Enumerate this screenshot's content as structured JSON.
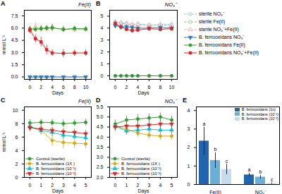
{
  "chart_data": [
    {
      "type": "line",
      "title": "Fe(II)",
      "annotations": [
        "A"
      ],
      "xlabel": "Days",
      "ylabel": "mmol L⁻¹",
      "xlim": [
        -1,
        11
      ],
      "xticks": [
        0,
        2,
        4,
        6,
        8,
        10
      ],
      "ylim": [
        -0.3,
        8.2
      ],
      "yticks": [
        {
          "value": 0,
          "label": "0.0"
        },
        1.5,
        {
          "value": 3,
          "label": "3.0"
        },
        4.5,
        {
          "value": 6,
          "label": "6.0"
        },
        7.5
      ],
      "series": [
        {
          "name": "sterile NO₃⁻",
          "color": "#7ec8e3",
          "marker": "circle-open",
          "line_style": "dashed",
          "x": [
            0,
            1,
            2,
            3,
            4,
            6,
            8,
            10
          ],
          "values": [
            0,
            0,
            0,
            0,
            0,
            0,
            0,
            0
          ],
          "errors": [
            0,
            0,
            0,
            0,
            0,
            0,
            0,
            0
          ]
        },
        {
          "name": "sterile Fe(II)",
          "color": "#7dc97d",
          "marker": "circle-open",
          "line_style": "dashed",
          "x": [
            0,
            1,
            2,
            3,
            4,
            6,
            8,
            10
          ],
          "values": [
            5.9,
            6.1,
            5.9,
            6.05,
            6.05,
            5.85,
            5.95,
            5.9
          ],
          "errors": [
            0.3,
            0.4,
            0.35,
            0.3,
            0.4,
            0.35,
            0.3,
            0.3
          ]
        },
        {
          "name": "sterile NO₃⁻+Fe(II)",
          "color": "#f4a0a0",
          "marker": "triangle-up-open",
          "line_style": "dashed",
          "x": [
            0,
            1,
            2,
            3,
            4,
            6,
            8,
            10
          ],
          "values": [
            5.8,
            6.1,
            5.95,
            5.9,
            6.05,
            5.85,
            5.8,
            5.85
          ],
          "errors": [
            0.5,
            0.6,
            0.4,
            0.45,
            0.5,
            0.4,
            0.35,
            0.35
          ]
        },
        {
          "name": "B. ferrooxidans  NO₃⁻",
          "color": "#2b7bba",
          "marker": "triangle-down",
          "line_style": "solid",
          "x": [
            0,
            1,
            2,
            3,
            4,
            6,
            8,
            10
          ],
          "values": [
            0,
            0,
            0,
            0,
            0,
            0,
            0,
            0
          ],
          "errors": [
            0,
            0,
            0,
            0,
            0,
            0,
            0,
            0
          ]
        },
        {
          "name": "B. ferrooxidans  Fe(II)",
          "color": "#2ca02c",
          "marker": "circle",
          "line_style": "solid",
          "x": [
            0,
            1,
            2,
            3,
            4,
            6,
            8,
            10
          ],
          "values": [
            5.9,
            5.85,
            5.95,
            6.0,
            6.05,
            5.85,
            5.95,
            5.9
          ],
          "errors": [
            0.3,
            0.3,
            0.35,
            0.3,
            0.4,
            0.3,
            0.3,
            0.3
          ]
        },
        {
          "name": "B. ferrooxidans  NO₃⁻+Fe(II)",
          "color": "#d62728",
          "marker": "square",
          "line_style": "solid",
          "x": [
            0,
            1,
            2,
            3,
            4,
            6,
            8,
            10
          ],
          "values": [
            5.75,
            4.7,
            4.3,
            3.35,
            2.95,
            2.9,
            2.95,
            2.95
          ],
          "errors": [
            0.4,
            0.5,
            0.6,
            0.6,
            0.4,
            0.5,
            0.4,
            0.4
          ]
        }
      ]
    },
    {
      "type": "line",
      "title": "NO₃⁻",
      "annotations": [
        "B"
      ],
      "xlabel": "Days",
      "legend": "right",
      "xlim": [
        -1,
        11
      ],
      "xticks": [
        0,
        2,
        4,
        6,
        8,
        10
      ],
      "ylim": [
        -0.3,
        5.5
      ],
      "yticks": [
        0,
        1,
        2,
        3,
        4,
        5
      ],
      "series": [
        {
          "name": "sterile NO₃⁻",
          "color": "#7ec8e3",
          "marker": "circle-open",
          "line_style": "dashed",
          "x": [
            0,
            1,
            2,
            3,
            4,
            6,
            8,
            10
          ],
          "values": [
            4.5,
            4.45,
            4.4,
            4.3,
            4.35,
            4.25,
            4.3,
            4.3
          ],
          "errors": [
            0.2,
            0.2,
            0.2,
            0.15,
            0.2,
            0.2,
            0.2,
            0.2
          ]
        },
        {
          "name": "sterile Fe(II)",
          "color": "#7dc97d",
          "marker": "circle-open",
          "line_style": "dashed",
          "x": [
            0,
            1,
            2,
            3,
            4,
            6,
            8,
            10
          ],
          "values": [
            0,
            0,
            0,
            0,
            0,
            0,
            0,
            0
          ],
          "errors": [
            0,
            0,
            0,
            0,
            0,
            0,
            0,
            0
          ]
        },
        {
          "name": "sterile NO₃⁻+Fe(II)",
          "color": "#f4a0a0",
          "marker": "triangle-up-open",
          "line_style": "dashed",
          "x": [
            0,
            1,
            2,
            3,
            4,
            6,
            8,
            10
          ],
          "values": [
            4.5,
            4.4,
            4.35,
            4.3,
            4.3,
            4.2,
            4.25,
            4.2
          ],
          "errors": [
            0.2,
            0.2,
            0.2,
            0.15,
            0.2,
            0.2,
            0.2,
            0.2
          ]
        },
        {
          "name": "B. ferrooxidans  NO₃⁻",
          "color": "#2b7bba",
          "marker": "triangle-down",
          "line_style": "solid",
          "x": [
            0,
            1,
            2,
            3,
            4,
            6,
            8,
            10
          ],
          "values": [
            4.2,
            4.1,
            4.1,
            4.05,
            4.0,
            4.0,
            4.05,
            4.0
          ],
          "errors": [
            0.2,
            0.2,
            0.2,
            0.2,
            0.2,
            0.2,
            0.2,
            0.2
          ]
        },
        {
          "name": "B. ferrooxidans  Fe(II)",
          "color": "#2ca02c",
          "marker": "circle",
          "line_style": "solid",
          "x": [
            0,
            1,
            2,
            3,
            4,
            6,
            8,
            10
          ],
          "values": [
            0,
            0,
            0,
            0,
            0,
            0,
            0,
            0
          ],
          "errors": [
            0,
            0,
            0,
            0,
            0,
            0,
            0,
            0
          ]
        },
        {
          "name": "B. ferrooxidans  NO₃⁻+Fe(II)",
          "color": "#d62728",
          "marker": "square",
          "line_style": "solid",
          "x": [
            0,
            1,
            2,
            3,
            4,
            6,
            8,
            10
          ],
          "values": [
            4.4,
            4.1,
            3.9,
            3.8,
            3.85,
            3.95,
            3.9,
            3.95
          ],
          "errors": [
            0.2,
            0.25,
            0.2,
            0.2,
            0.2,
            0.2,
            0.2,
            0.2
          ]
        }
      ]
    },
    {
      "type": "line",
      "title": "Fe(II)",
      "annotations": [
        "C"
      ],
      "xlabel": "Days",
      "ylabel": "mmol L⁻¹",
      "legend": "lower left",
      "xlim": [
        -0.5,
        5.5
      ],
      "xticks": [
        0,
        1,
        2,
        3,
        4,
        5
      ],
      "ylim": [
        0,
        10.5
      ],
      "yticks": [
        0,
        2,
        4,
        6,
        8,
        10
      ],
      "series": [
        {
          "name": "Control (sterile)",
          "color": "#2ca02c",
          "marker": "circle",
          "line_style": "solid",
          "x": [
            0,
            1,
            2,
            3,
            4,
            5
          ],
          "values": [
            8.1,
            8.2,
            8.15,
            8.0,
            8.1,
            8.2
          ],
          "errors": [
            0.5,
            0.45,
            0.5,
            0.55,
            0.5,
            0.5
          ]
        },
        {
          "name": "B. ferrooxidans (1X )",
          "color": "#d4ac0d",
          "marker": "circle",
          "line_style": "solid",
          "x": [
            0,
            1,
            2,
            3,
            4,
            5
          ],
          "values": [
            7.5,
            7.0,
            5.5,
            5.2,
            5.1,
            5.0
          ],
          "errors": [
            0.6,
            0.7,
            0.8,
            0.9,
            0.8,
            0.7
          ]
        },
        {
          "name": "B. ferrooxidans (10⁻¹)",
          "color": "#17becf",
          "marker": "triangle-up",
          "line_style": "solid",
          "x": [
            0,
            1,
            2,
            3,
            4,
            5
          ],
          "values": [
            7.6,
            7.0,
            6.7,
            6.3,
            6.1,
            5.9
          ],
          "errors": [
            0.5,
            0.6,
            0.6,
            0.6,
            0.5,
            0.5
          ]
        },
        {
          "name": "B. ferrooxidans (10⁻²)",
          "color": "#d62728",
          "marker": "triangle-down",
          "line_style": "solid",
          "x": [
            0,
            1,
            2,
            3,
            4,
            5
          ],
          "values": [
            7.4,
            7.2,
            7.0,
            6.8,
            6.7,
            6.5
          ],
          "errors": [
            0.5,
            0.5,
            0.5,
            0.5,
            0.5,
            0.5
          ]
        }
      ]
    },
    {
      "type": "line",
      "title": "NO₃⁻",
      "annotations": [
        "D"
      ],
      "xlabel": "Days",
      "legend": "lower left",
      "xlim": [
        -0.5,
        5.5
      ],
      "xticks": [
        0,
        1,
        2,
        3,
        4,
        5
      ],
      "ylim": [
        2,
        5.5
      ],
      "yticks": [
        {
          "value": 2,
          "label": "2.0"
        },
        2.5,
        {
          "value": 3,
          "label": "3.0"
        },
        3.5,
        {
          "value": 4,
          "label": "4.0"
        },
        4.5,
        {
          "value": 5,
          "label": "5.0"
        },
        5.5
      ],
      "series": [
        {
          "name": "Control (sterile)",
          "color": "#2ca02c",
          "marker": "circle",
          "line_style": "solid",
          "x": [
            0,
            1,
            2,
            3,
            4,
            5
          ],
          "values": [
            4.65,
            4.85,
            4.9,
            4.95,
            5.0,
            4.85
          ],
          "errors": [
            0.2,
            0.2,
            0.2,
            0.2,
            0.2,
            0.2
          ]
        },
        {
          "name": "B. ferrooxidans (1X )",
          "color": "#d4ac0d",
          "marker": "circle",
          "line_style": "solid",
          "x": [
            0,
            1,
            2,
            3,
            4,
            5
          ],
          "values": [
            4.55,
            4.4,
            4.2,
            4.1,
            4.05,
            4.05
          ],
          "errors": [
            0.2,
            0.2,
            0.2,
            0.2,
            0.2,
            0.2
          ]
        },
        {
          "name": "B. ferrooxidans (10⁻¹)",
          "color": "#17becf",
          "marker": "triangle-up",
          "line_style": "solid",
          "x": [
            0,
            1,
            2,
            3,
            4,
            5
          ],
          "values": [
            4.55,
            4.3,
            4.35,
            4.4,
            4.35,
            4.35
          ],
          "errors": [
            0.2,
            0.2,
            0.2,
            0.2,
            0.2,
            0.2
          ]
        },
        {
          "name": "B. ferrooxidans (10⁻²)",
          "color": "#d62728",
          "marker": "triangle-down",
          "line_style": "solid",
          "x": [
            0,
            1,
            2,
            3,
            4,
            5
          ],
          "values": [
            4.5,
            4.55,
            4.55,
            4.6,
            4.65,
            4.65
          ],
          "errors": [
            0.2,
            0.2,
            0.2,
            0.2,
            0.2,
            0.2
          ]
        }
      ]
    },
    {
      "type": "bar",
      "annotations": [
        "E"
      ],
      "legend": "upper right",
      "categories": [
        "Fe(II)",
        "NO₃⁻"
      ],
      "ylim": [
        0,
        4.2
      ],
      "yticks": [
        0,
        1,
        2,
        3,
        4
      ],
      "series": [
        {
          "name": "B. ferrooxidans (1x)",
          "color": "#2166ac",
          "values": [
            2.35,
            0.52
          ],
          "errors": [
            0.75,
            0.1
          ],
          "letters": [
            "a",
            "a"
          ]
        },
        {
          "name": "B. ferrooxidans (10⁻¹)",
          "color": "#6baed6",
          "values": [
            1.3,
            0.4
          ],
          "errors": [
            0.42,
            0.1
          ],
          "letters": [
            "b",
            "b"
          ]
        },
        {
          "name": "B. ferrooxidans (10⁻²)",
          "color": "#c6dbef",
          "values": [
            0.82,
            0.06
          ],
          "errors": [
            0.28,
            0.04
          ],
          "letters": [
            "c",
            "c"
          ]
        }
      ]
    }
  ]
}
